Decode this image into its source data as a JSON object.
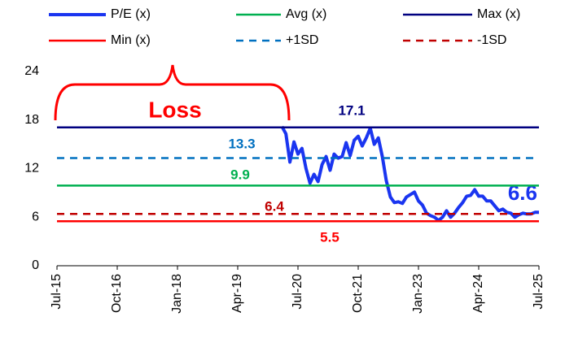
{
  "chart_data": {
    "type": "line",
    "annotation": "Loss",
    "categories": [
      "Jul-15",
      null,
      null,
      null,
      null,
      null,
      null,
      null,
      null,
      null,
      null,
      null,
      null,
      null,
      null,
      "Oct-16",
      null,
      null,
      null,
      null,
      null,
      null,
      null,
      null,
      null,
      null,
      null,
      null,
      null,
      null,
      "Jan-18",
      null,
      null,
      null,
      null,
      null,
      null,
      null,
      null,
      null,
      null,
      null,
      null,
      null,
      null,
      "Apr-19",
      null,
      null,
      null,
      null,
      null,
      null,
      null,
      null,
      null,
      null,
      null,
      null,
      null,
      null,
      "Jul-20",
      null,
      null,
      null,
      null,
      null,
      null,
      null,
      null,
      null,
      null,
      null,
      null,
      null,
      null,
      "Oct-21",
      null,
      null,
      null,
      null,
      null,
      null,
      null,
      null,
      null,
      null,
      null,
      null,
      null,
      null,
      "Jan-23",
      null,
      null,
      null,
      null,
      null,
      null,
      null,
      null,
      null,
      null,
      null,
      null,
      null,
      null,
      "Apr-24",
      null,
      null,
      null,
      null,
      null,
      null,
      null,
      null,
      null,
      null,
      null,
      null,
      null,
      null,
      "Jul-25"
    ],
    "series": [
      {
        "name": "P/E (x)",
        "color": "#1a35f0",
        "values": [
          null,
          null,
          null,
          null,
          null,
          null,
          null,
          null,
          null,
          null,
          null,
          null,
          null,
          null,
          null,
          null,
          null,
          null,
          null,
          null,
          null,
          null,
          null,
          null,
          null,
          null,
          null,
          null,
          null,
          null,
          null,
          null,
          null,
          null,
          null,
          null,
          null,
          null,
          null,
          null,
          null,
          null,
          null,
          null,
          null,
          null,
          null,
          null,
          null,
          null,
          null,
          null,
          null,
          null,
          null,
          null,
          17.2,
          16.3,
          12.8,
          15.3,
          13.8,
          14.5,
          12.0,
          10.2,
          11.3,
          10.4,
          12.5,
          13.5,
          11.8,
          13.8,
          13.3,
          13.5,
          15.2,
          13.6,
          15.5,
          16.0,
          14.8,
          15.8,
          17.0,
          15.0,
          15.8,
          13.5,
          10.5,
          8.5,
          7.8,
          7.9,
          7.7,
          8.5,
          8.8,
          9.1,
          8.0,
          7.5,
          6.5,
          6.2,
          6.0,
          5.6,
          6.0,
          6.8,
          6.0,
          6.5,
          7.2,
          7.8,
          8.6,
          8.7,
          9.4,
          8.6,
          8.6,
          8.0,
          8.0,
          7.4,
          6.8,
          7.0,
          6.6,
          6.5,
          6.0,
          6.3,
          6.5,
          6.4,
          6.4,
          6.6,
          6.6
        ]
      },
      {
        "name": "Avg (x)",
        "color": "#00b050",
        "value": 9.9
      },
      {
        "name": "Max (x)",
        "color": "#000080",
        "value": 17.1
      },
      {
        "name": "Min (x)",
        "color": "#ff0000",
        "value": 5.5
      },
      {
        "name": "+1SD",
        "color": "#0070c0",
        "value": 13.3,
        "dashed": true
      },
      {
        "name": "-1SD",
        "color": "#c00000",
        "value": 6.4,
        "dashed": true
      }
    ],
    "ylim": [
      0,
      24
    ],
    "yticks": [
      0,
      6,
      12,
      18,
      24
    ],
    "grid": false
  }
}
